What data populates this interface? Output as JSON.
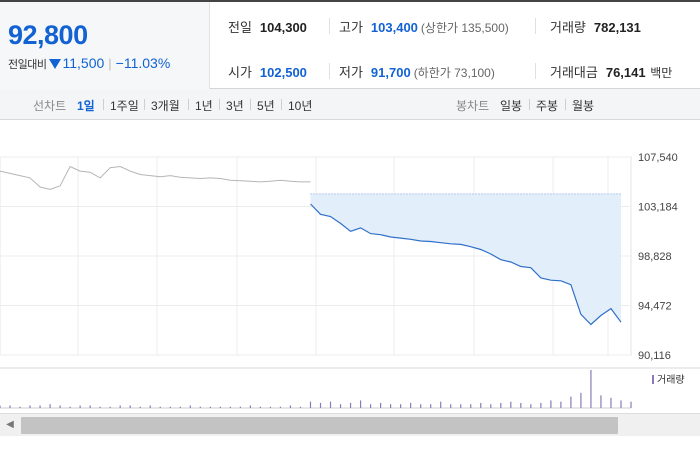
{
  "quote": {
    "price": "92,800",
    "change_label": "전일대비",
    "change_value": "11,500",
    "change_pct": "−11.03%"
  },
  "info": {
    "prev_close_label": "전일",
    "prev_close": "104,300",
    "high_label": "고가",
    "high": "103,400",
    "upper_limit": "(상한가 135,500)",
    "volume_label": "거래량",
    "volume": "782,131",
    "open_label": "시가",
    "open": "102,500",
    "low_label": "저가",
    "low": "91,700",
    "lower_limit": "(하한가 73,100)",
    "amount_label": "거래대금",
    "amount": "76,141",
    "amount_unit": "백만"
  },
  "toolbar": {
    "line_chart_label": "선차트",
    "periods": [
      "1일",
      "1주일",
      "3개월",
      "1년",
      "3년",
      "5년",
      "10년"
    ],
    "active_period": "1일",
    "candle_chart_label": "봉차트",
    "candles": [
      "일봉",
      "주봉",
      "월봉"
    ]
  },
  "colors": {
    "price_blue": "#1262d3",
    "today_line": "#2f70c9",
    "today_fill": "#e3eefb",
    "prev_line": "#b5b5b5",
    "volume_bar": "#8a7bb8"
  },
  "chart_data": {
    "type": "line",
    "y_ticks": [
      "107,540",
      "103,184",
      "98,828",
      "94,472",
      "90,116"
    ],
    "ylim": [
      90116,
      107540
    ],
    "reference_price": 104300,
    "x": [
      0,
      0.5,
      1,
      1.5,
      2,
      2.5,
      3,
      3.5,
      4,
      4.5,
      5,
      5.5,
      6,
      6.5,
      7,
      7.5,
      8,
      8.5,
      9,
      9.5,
      10,
      10.5,
      11,
      11.5,
      12,
      12.5,
      13,
      13.5,
      14,
      14.5,
      15,
      15.5,
      16,
      16.5,
      17,
      17.5,
      18,
      18.5,
      19,
      19.5,
      20,
      20.5,
      21,
      21.5,
      22,
      22.5,
      23,
      23.5,
      24,
      24.5,
      25,
      25.5,
      26,
      26.5,
      27,
      27.5,
      28,
      28.5,
      29,
      29.5,
      30,
      30.5,
      31,
      31.5
    ],
    "series": [
      {
        "values_prev": [
          106300,
          106100,
          105900,
          105700,
          104900,
          104700,
          105000,
          106700,
          106300,
          106200,
          105700,
          106600,
          106700,
          106300,
          106000,
          105900,
          105800,
          105900,
          105750,
          105700,
          105650,
          105700,
          105650,
          105500,
          105450,
          105400,
          105350,
          105400,
          105500,
          105400,
          105350,
          105350
        ],
        "values_today": [
          null,
          null,
          null,
          null,
          null,
          null,
          null,
          null,
          null,
          null,
          null,
          null,
          null,
          null,
          null,
          null,
          null,
          null,
          null,
          null,
          null,
          null,
          null,
          null,
          null,
          null,
          null,
          null,
          null,
          null,
          null,
          103400,
          102500,
          102300,
          101700,
          101000,
          101300,
          100800,
          100700,
          100500,
          100400,
          100300,
          100150,
          100100,
          100000,
          99900,
          99850,
          99650,
          99400,
          99000,
          98500,
          98300,
          97900,
          97800,
          96900,
          96700,
          96650,
          96300,
          93700,
          92800,
          93600,
          94200,
          93000
        ]
      }
    ],
    "volume": [
      2,
      2,
      1,
      2,
      2,
      3,
      2,
      1,
      2,
      2,
      1,
      1,
      2,
      2,
      1,
      2,
      1,
      1,
      1,
      2,
      1,
      1,
      1,
      1,
      1,
      2,
      1,
      1,
      1,
      2,
      1,
      5,
      4,
      5,
      3,
      4,
      6,
      3,
      4,
      3,
      3,
      4,
      3,
      3,
      5,
      3,
      3,
      3,
      4,
      3,
      4,
      5,
      4,
      3,
      4,
      6,
      5,
      9,
      12,
      30,
      10,
      8,
      6,
      5
    ],
    "volume_legend": "거래량",
    "grid": true
  }
}
